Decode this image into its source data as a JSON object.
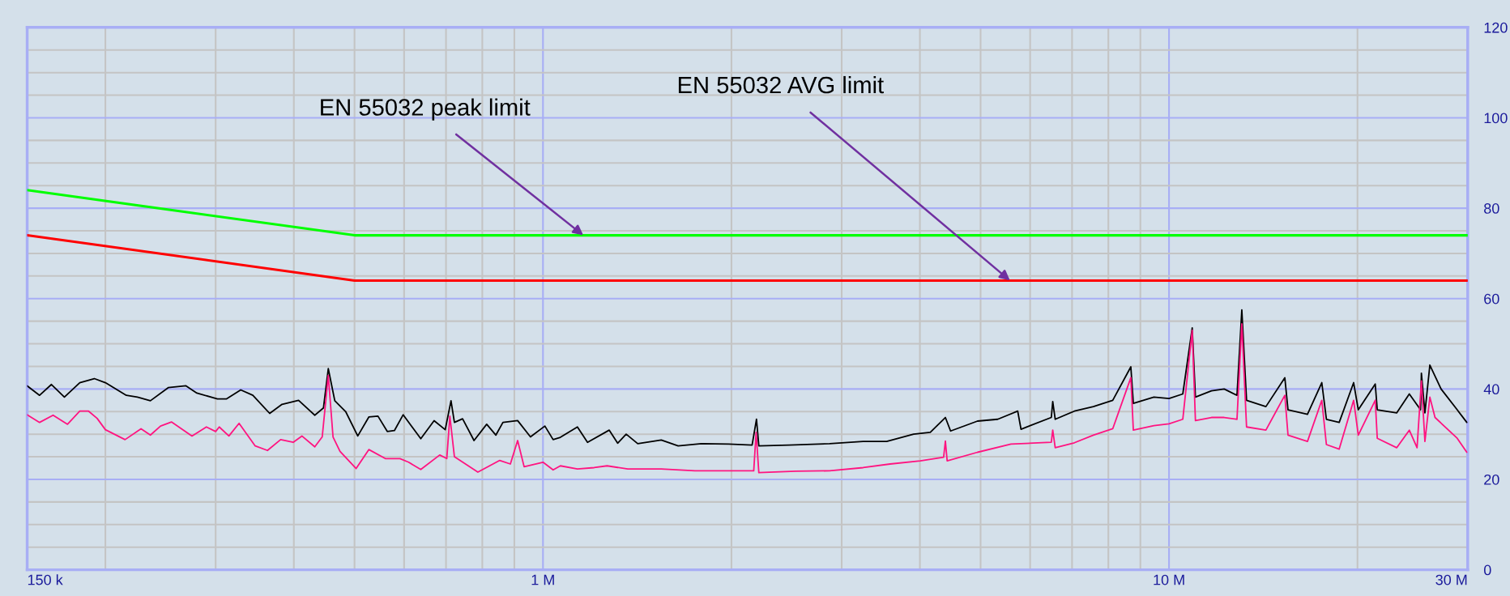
{
  "chart_data": {
    "type": "line",
    "log": "x",
    "grid": true,
    "legend": false,
    "line_style": "solid",
    "marker": "none",
    "xlim": [
      0.15,
      30
    ],
    "ylim": [
      0,
      120
    ],
    "xticks": [
      {
        "value": 0.15,
        "label": "150 k"
      },
      {
        "value": 0.2,
        "label": null
      },
      {
        "value": 0.3,
        "label": null
      },
      {
        "value": 0.4,
        "label": null
      },
      {
        "value": 0.5,
        "label": null
      },
      {
        "value": 0.6,
        "label": null
      },
      {
        "value": 0.7,
        "label": null
      },
      {
        "value": 0.8,
        "label": null
      },
      {
        "value": 0.9,
        "label": null
      },
      {
        "value": 1,
        "label": "1 M"
      },
      {
        "value": 2,
        "label": null
      },
      {
        "value": 3,
        "label": null
      },
      {
        "value": 4,
        "label": null
      },
      {
        "value": 5,
        "label": null
      },
      {
        "value": 6,
        "label": null
      },
      {
        "value": 7,
        "label": null
      },
      {
        "value": 8,
        "label": null
      },
      {
        "value": 9,
        "label": null
      },
      {
        "value": 10,
        "label": "10 M"
      },
      {
        "value": 20,
        "label": null
      },
      {
        "value": 30,
        "label": "30 M"
      }
    ],
    "yticks": [
      0,
      {
        "value": 5,
        "label": null
      },
      {
        "value": 10,
        "label": null
      },
      {
        "value": 15,
        "label": null
      },
      20,
      {
        "value": 25,
        "label": null
      },
      {
        "value": 30,
        "label": null
      },
      {
        "value": 35,
        "label": null
      },
      40,
      {
        "value": 45,
        "label": null
      },
      {
        "value": 50,
        "label": null
      },
      {
        "value": 55,
        "label": null
      },
      60,
      {
        "value": 65,
        "label": null
      },
      {
        "value": 70,
        "label": null
      },
      {
        "value": 75,
        "label": null
      },
      80,
      {
        "value": 85,
        "label": null
      },
      {
        "value": 90,
        "label": null
      },
      {
        "value": 95,
        "label": null
      },
      100,
      {
        "value": 105,
        "label": null
      },
      {
        "value": 110,
        "label": null
      },
      {
        "value": 115,
        "label": null
      },
      120
    ],
    "series": [
      {
        "color": "#00ff00",
        "x": [
          0.15,
          0.5,
          30
        ],
        "values": [
          84,
          74,
          74
        ]
      },
      {
        "color": "#ff0000",
        "x": [
          0.15,
          0.5,
          30
        ],
        "values": [
          74,
          64,
          64
        ]
      },
      {
        "color": "#000000",
        "x": [
          0.15,
          0.157,
          0.164,
          0.172,
          0.182,
          0.192,
          0.2,
          0.216,
          0.225,
          0.236,
          0.252,
          0.269,
          0.28,
          0.302,
          0.312,
          0.329,
          0.344,
          0.366,
          0.383,
          0.407,
          0.432,
          0.446,
          0.454,
          0.465,
          0.484,
          0.506,
          0.527,
          0.545,
          0.564,
          0.579,
          0.598,
          0.638,
          0.67,
          0.698,
          0.713,
          0.722,
          0.744,
          0.776,
          0.813,
          0.841,
          0.863,
          0.911,
          0.955,
          1.007,
          1.038,
          1.066,
          1.135,
          1.178,
          1.276,
          1.316,
          1.358,
          1.417,
          1.545,
          1.644,
          1.791,
          1.979,
          2.158,
          2.193,
          2.212,
          2.472,
          2.87,
          3.246,
          3.54,
          3.909,
          4.156,
          4.393,
          4.478,
          4.944,
          5.325,
          5.732,
          5.802,
          6.486,
          6.52,
          6.58,
          7.06,
          7.57,
          8.13,
          8.69,
          8.77,
          9.46,
          10,
          10.52,
          10.89,
          11.02,
          11.69,
          12.25,
          12.84,
          13.07,
          13.3,
          14.28,
          15.31,
          15.49,
          16.64,
          17.54,
          17.84,
          18.7,
          19.72,
          20.06,
          21.35,
          21.51,
          23.1,
          24.2,
          25.22,
          25.3,
          25.63,
          26.1,
          27.2,
          28.86,
          29.9
        ],
        "values": [
          40.7,
          38.6,
          41.0,
          38.2,
          41.4,
          42.3,
          41.4,
          38.6,
          38.2,
          37.4,
          40.3,
          40.7,
          39.1,
          37.8,
          37.8,
          39.8,
          38.6,
          34.6,
          36.6,
          37.5,
          34.2,
          35.8,
          44.5,
          37.4,
          35.0,
          29.6,
          33.8,
          34.0,
          30.6,
          30.8,
          34.3,
          29.0,
          33.0,
          31.0,
          37.4,
          32.6,
          33.4,
          28.6,
          32.2,
          29.8,
          32.6,
          33.0,
          29.4,
          31.8,
          28.8,
          29.3,
          31.6,
          28.2,
          30.9,
          28.0,
          30.0,
          27.9,
          28.7,
          27.4,
          27.9,
          27.8,
          27.6,
          33.3,
          27.4,
          27.6,
          27.9,
          28.4,
          28.4,
          30.0,
          30.4,
          33.7,
          30.7,
          32.9,
          33.3,
          35.1,
          31.1,
          33.7,
          37.2,
          33.3,
          35.1,
          36.1,
          37.5,
          44.9,
          36.8,
          38.2,
          37.9,
          38.9,
          53.5,
          38.2,
          39.6,
          40.0,
          38.6,
          57.5,
          37.5,
          36.1,
          42.5,
          35.4,
          34.4,
          41.4,
          33.3,
          32.6,
          41.4,
          35.4,
          41.1,
          35.4,
          34.7,
          38.9,
          35.4,
          43.5,
          34.7,
          45.3,
          40.0,
          35.4,
          32.6
        ]
      },
      {
        "color": "#ff1480",
        "x": [
          0.15,
          0.157,
          0.165,
          0.174,
          0.182,
          0.188,
          0.194,
          0.2,
          0.215,
          0.228,
          0.236,
          0.245,
          0.255,
          0.275,
          0.29,
          0.3,
          0.304,
          0.315,
          0.327,
          0.347,
          0.363,
          0.381,
          0.399,
          0.412,
          0.432,
          0.444,
          0.454,
          0.462,
          0.474,
          0.503,
          0.527,
          0.56,
          0.591,
          0.61,
          0.638,
          0.684,
          0.702,
          0.71,
          0.722,
          0.787,
          0.853,
          0.887,
          0.911,
          0.933,
          1.0,
          1.038,
          1.066,
          1.135,
          1.207,
          1.266,
          1.366,
          1.545,
          1.749,
          1.979,
          2.171,
          2.19,
          2.212,
          2.535,
          2.87,
          3.246,
          3.584,
          4.006,
          4.365,
          4.393,
          4.422,
          4.944,
          5.592,
          6.486,
          6.52,
          6.58,
          7.06,
          7.57,
          8.13,
          8.69,
          8.77,
          9.46,
          10,
          10.52,
          10.89,
          11.02,
          11.69,
          12.25,
          12.84,
          13.07,
          13.3,
          14.28,
          15.31,
          15.49,
          16.64,
          17.54,
          17.84,
          18.7,
          19.72,
          20.06,
          21.35,
          21.51,
          23.1,
          24.2,
          24.9,
          25.3,
          25.63,
          26.1,
          26.6,
          28.86,
          29.9
        ],
        "values": [
          34.3,
          32.6,
          34.2,
          32.2,
          35.1,
          35.1,
          33.5,
          31.0,
          28.8,
          31.2,
          29.8,
          31.8,
          32.7,
          29.6,
          31.6,
          30.6,
          31.6,
          29.6,
          32.4,
          27.4,
          26.4,
          28.8,
          28.2,
          29.6,
          27.2,
          29.4,
          43.0,
          29.4,
          26.2,
          22.4,
          26.6,
          24.6,
          24.6,
          23.8,
          22.2,
          25.4,
          24.6,
          34.0,
          25.0,
          21.6,
          24.2,
          23.4,
          28.6,
          22.8,
          23.8,
          22.1,
          23.0,
          22.3,
          22.6,
          23.0,
          22.3,
          22.3,
          21.9,
          21.9,
          21.9,
          30.4,
          21.5,
          21.8,
          21.9,
          22.6,
          23.4,
          24.1,
          24.9,
          28.5,
          24.1,
          26.0,
          27.8,
          28.2,
          30.9,
          27.0,
          28.1,
          29.8,
          31.2,
          42.5,
          30.9,
          31.9,
          32.3,
          33.3,
          53.0,
          33.0,
          33.7,
          33.7,
          33.3,
          54.4,
          31.6,
          30.9,
          38.6,
          29.8,
          28.4,
          37.5,
          27.7,
          26.7,
          37.5,
          29.8,
          37.5,
          29.1,
          27.0,
          30.9,
          27.0,
          41.8,
          28.4,
          38.2,
          33.7,
          29.1,
          26.0
        ]
      }
    ],
    "annotations": [
      {
        "text": "EN 55032 peak limit",
        "x": 1.16,
        "y": 74
      },
      {
        "text": "EN 55032 AVG limit",
        "x": 5.57,
        "y": 64
      }
    ]
  }
}
